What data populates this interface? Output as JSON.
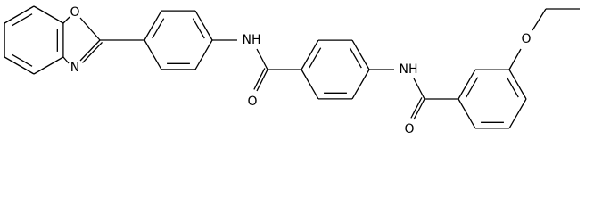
{
  "molecule": {
    "atoms": [
      {
        "label": "O"
      },
      {
        "label": "N"
      },
      {
        "label": "NH"
      },
      {
        "label": "O"
      },
      {
        "label": "NH"
      },
      {
        "label": "O"
      },
      {
        "label": "O"
      }
    ]
  }
}
